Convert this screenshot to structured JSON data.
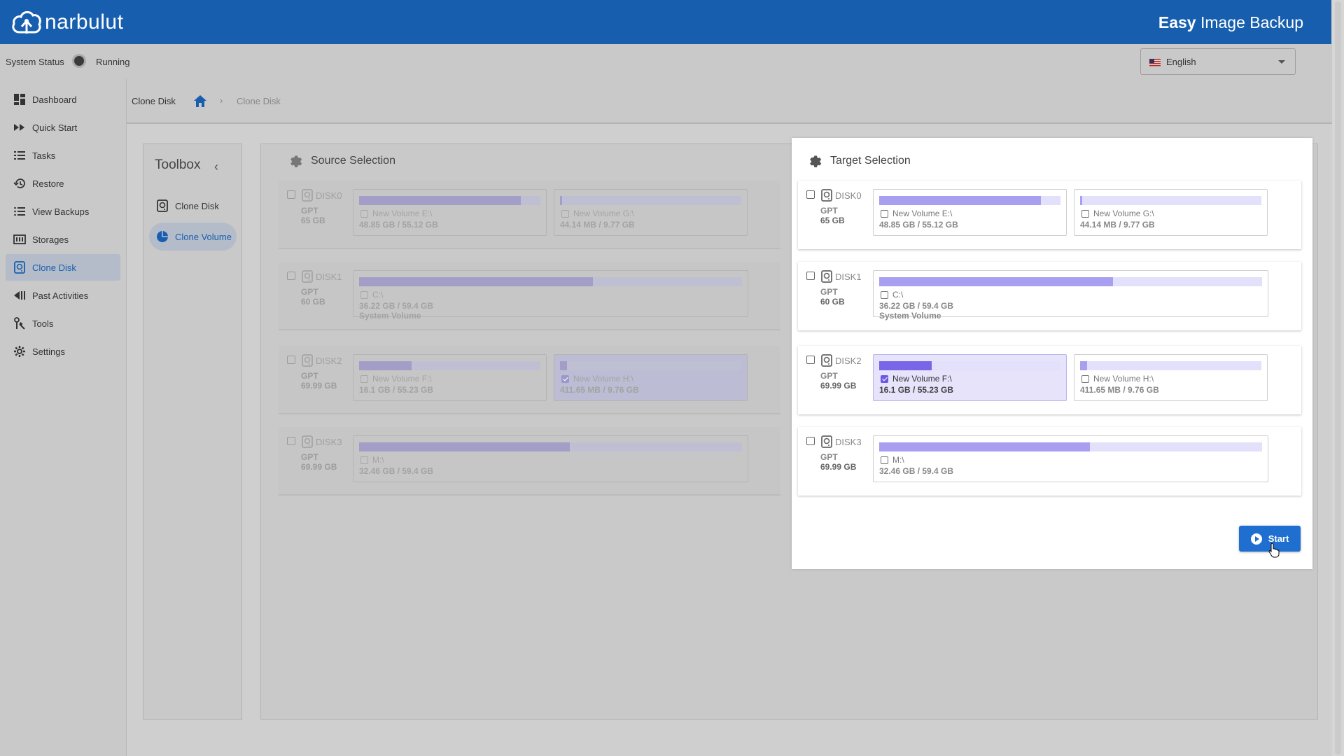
{
  "header": {
    "brand": "narbulut",
    "app_title_bold": "Easy",
    "app_title_rest": " Image Backup",
    "brand_color": "#175fae"
  },
  "status": {
    "label": "System Status",
    "value": "Running"
  },
  "language": {
    "selected": "English"
  },
  "sidebar": {
    "items": [
      {
        "label": "Dashboard",
        "icon": "dashboard-icon"
      },
      {
        "label": "Quick Start",
        "icon": "fast-forward-icon"
      },
      {
        "label": "Tasks",
        "icon": "list-icon"
      },
      {
        "label": "Restore",
        "icon": "restore-icon"
      },
      {
        "label": "View Backups",
        "icon": "view-list-icon"
      },
      {
        "label": "Storages",
        "icon": "storage-icon"
      },
      {
        "label": "Clone Disk",
        "icon": "disk-icon",
        "active": true
      },
      {
        "label": "Past Activities",
        "icon": "history-icon"
      },
      {
        "label": "Tools",
        "icon": "tools-icon"
      },
      {
        "label": "Settings",
        "icon": "settings-icon"
      }
    ]
  },
  "breadcrumb": {
    "title": "Clone Disk",
    "current": "Clone Disk"
  },
  "toolbox": {
    "title": "Toolbox",
    "items": [
      {
        "label": "Clone Disk",
        "icon": "disk-icon"
      },
      {
        "label": "Clone Volume",
        "icon": "pie-icon",
        "active": true
      }
    ]
  },
  "source": {
    "title": "Source Selection",
    "disks": [
      {
        "name": "DISK0",
        "type": "GPT",
        "size": "65 GB",
        "volumes": [
          {
            "name": "New Volume E:\\",
            "usage": "48.85 GB / 55.12 GB",
            "used_pct": 89
          },
          {
            "name": "New Volume G:\\",
            "usage": "44.14 MB / 9.77 GB",
            "used_pct": 0.5
          }
        ]
      },
      {
        "name": "DISK1",
        "type": "GPT",
        "size": "60 GB",
        "volumes": [
          {
            "name": "C:\\",
            "usage": "36.22 GB / 59.4 GB",
            "label": "System Volume",
            "used_pct": 61
          }
        ]
      },
      {
        "name": "DISK2",
        "type": "GPT",
        "size": "69.99 GB",
        "volumes": [
          {
            "name": "New Volume F:\\",
            "usage": "16.1 GB / 55.23 GB",
            "used_pct": 29
          },
          {
            "name": "New Volume H:\\",
            "usage": "411.65 MB / 9.76 GB",
            "used_pct": 4,
            "checked": true
          }
        ]
      },
      {
        "name": "DISK3",
        "type": "GPT",
        "size": "69.99 GB",
        "volumes": [
          {
            "name": "M:\\",
            "usage": "32.46 GB / 59.4 GB",
            "used_pct": 55
          }
        ]
      }
    ]
  },
  "target": {
    "title": "Target Selection",
    "disks": [
      {
        "name": "DISK0",
        "type": "GPT",
        "size": "65 GB",
        "volumes": [
          {
            "name": "New Volume E:\\",
            "usage": "48.85 GB / 55.12 GB",
            "used_pct": 89
          },
          {
            "name": "New Volume G:\\",
            "usage": "44.14 MB / 9.77 GB",
            "used_pct": 0.5
          }
        ]
      },
      {
        "name": "DISK1",
        "type": "GPT",
        "size": "60 GB",
        "volumes": [
          {
            "name": "C:\\",
            "usage": "36.22 GB / 59.4 GB",
            "label": "System Volume",
            "used_pct": 61
          }
        ]
      },
      {
        "name": "DISK2",
        "type": "GPT",
        "size": "69.99 GB",
        "volumes": [
          {
            "name": "New Volume F:\\",
            "usage": "16.1 GB / 55.23 GB",
            "used_pct": 29,
            "checked": true
          },
          {
            "name": "New Volume H:\\",
            "usage": "411.65 MB / 9.76 GB",
            "used_pct": 4
          }
        ]
      },
      {
        "name": "DISK3",
        "type": "GPT",
        "size": "69.99 GB",
        "volumes": [
          {
            "name": "M:\\",
            "usage": "32.46 GB / 59.4 GB",
            "used_pct": 55
          }
        ]
      }
    ]
  },
  "actions": {
    "start_label": "Start"
  }
}
